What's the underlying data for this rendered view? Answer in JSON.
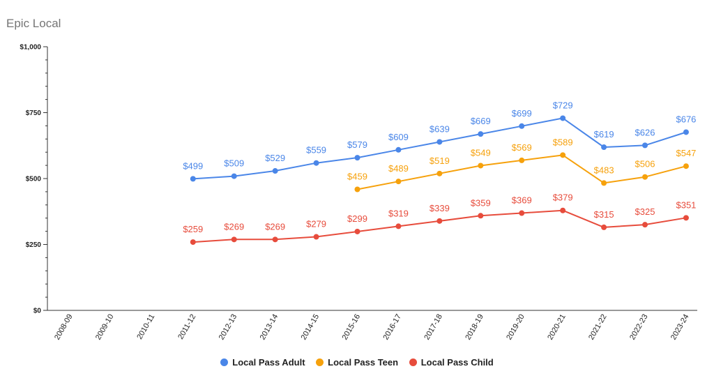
{
  "chart_data": {
    "type": "line",
    "title": "Epic Local",
    "xlabel": "",
    "ylabel": "",
    "ylim": [
      0,
      1000
    ],
    "yticks": [
      "$0",
      "$250",
      "$500",
      "$750",
      "$1,000"
    ],
    "ytick_values": [
      0,
      250,
      500,
      750,
      1000
    ],
    "categories": [
      "2008-09",
      "2009-10",
      "2010-11",
      "2011-12",
      "2012-13",
      "2013-14",
      "2014-15",
      "2015-16",
      "2016-17",
      "2017-18",
      "2018-19",
      "2019-20",
      "2020-21",
      "2021-22",
      "2022-23",
      "2023-24"
    ],
    "grid": false,
    "legend_position": "bottom",
    "series": [
      {
        "name": "Local Pass Adult",
        "color": "#4a86e8",
        "values": [
          null,
          null,
          null,
          499,
          509,
          529,
          559,
          579,
          609,
          639,
          669,
          699,
          729,
          619,
          626,
          676
        ]
      },
      {
        "name": "Local Pass Teen",
        "color": "#f6a10c",
        "values": [
          null,
          null,
          null,
          null,
          null,
          null,
          null,
          459,
          489,
          519,
          549,
          569,
          589,
          483,
          506,
          547
        ]
      },
      {
        "name": "Local Pass Child",
        "color": "#e74c3c",
        "values": [
          null,
          null,
          null,
          259,
          269,
          269,
          279,
          299,
          319,
          339,
          359,
          369,
          379,
          315,
          325,
          351
        ]
      }
    ]
  }
}
